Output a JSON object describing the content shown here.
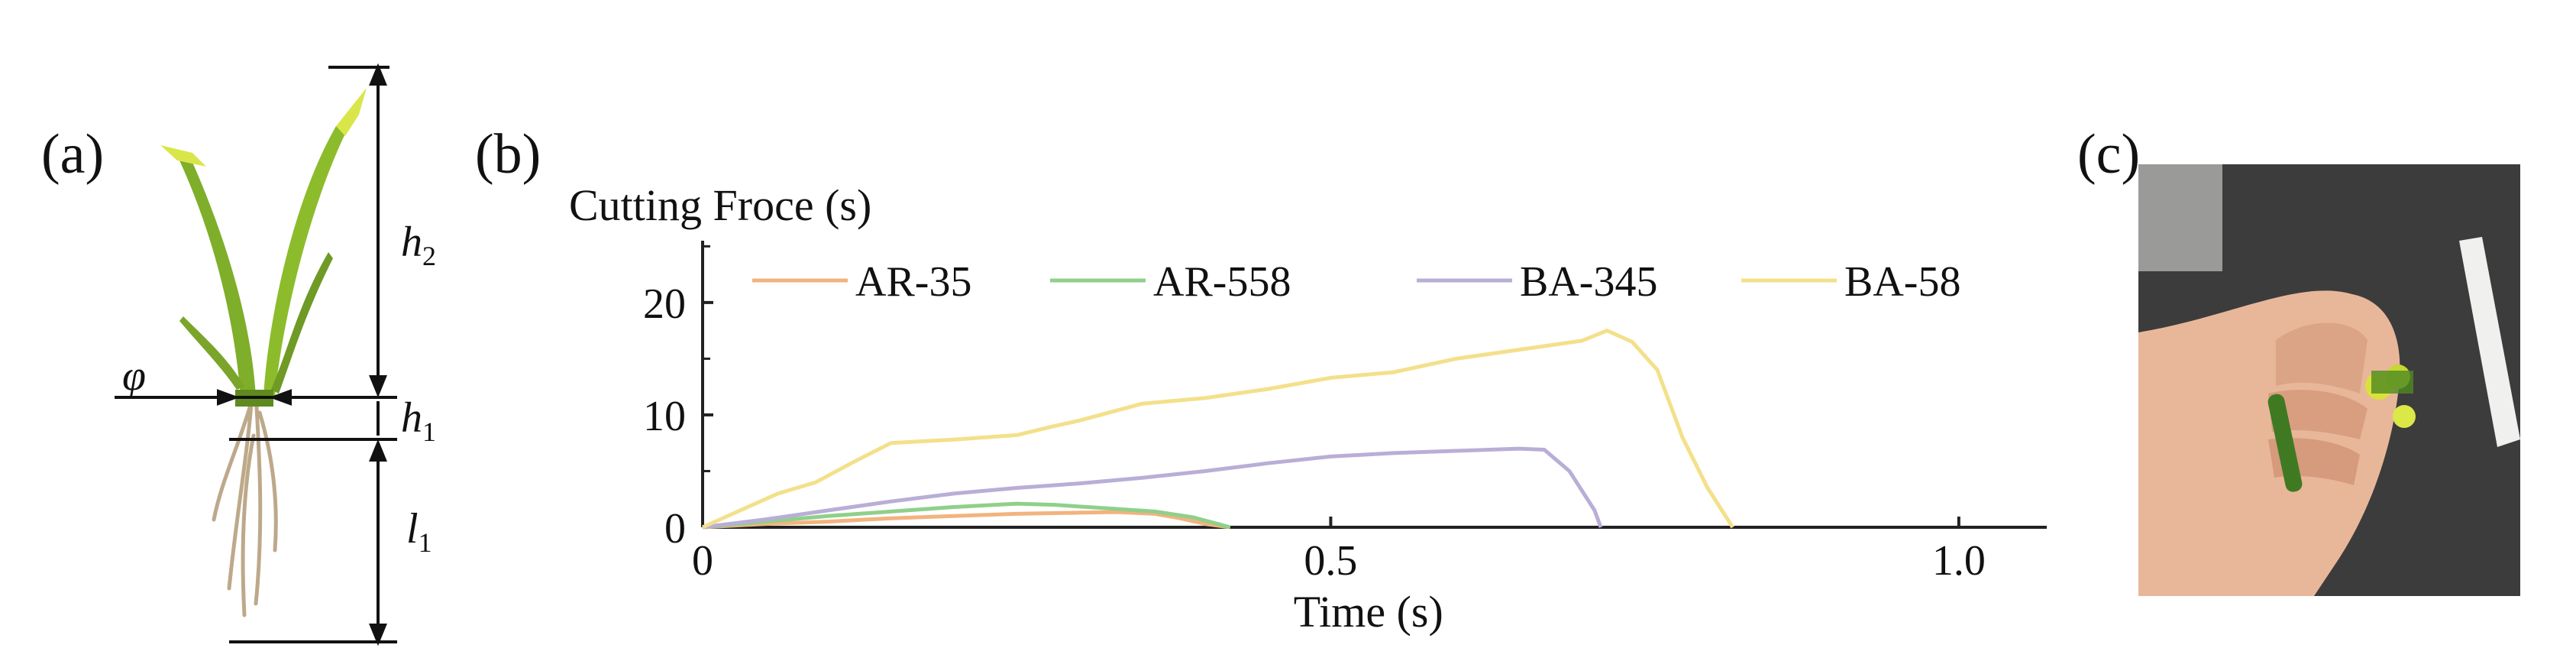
{
  "panels": {
    "a": {
      "label": "(a)",
      "dimension_labels": {
        "phi": "φ",
        "h1": "h",
        "h1_sub": "1",
        "h2": "h",
        "h2_sub": "2",
        "l1": "l",
        "l1_sub": "1"
      }
    },
    "b": {
      "label": "(b)"
    },
    "c": {
      "label": "(c)"
    }
  },
  "colors": {
    "AR-35": "#f2b37e",
    "AR-558": "#8fd08a",
    "BA-345": "#b9aed6",
    "BA-58": "#f3e08a",
    "axis": "#222222",
    "leaf_green": "#7fae2a",
    "leaf_yellow": "#d9e64a",
    "root": "#bda98a",
    "photo_bg": "#3c3c3c",
    "skin": "#e8b79a"
  },
  "chart_data": {
    "type": "line",
    "title": "",
    "ylabel": "Cutting Froce (s)",
    "xlabel": "Time (s)",
    "xlim": [
      0,
      1.07
    ],
    "ylim": [
      0,
      25.5
    ],
    "xticks": [
      {
        "v": 0,
        "label": "0"
      },
      {
        "v": 0.5,
        "label": "0.5"
      },
      {
        "v": 1.0,
        "label": "1.0"
      }
    ],
    "yticks": [
      {
        "v": 0,
        "label": "0"
      },
      {
        "v": 10,
        "label": "10"
      },
      {
        "v": 20,
        "label": "20"
      }
    ],
    "yminor": [
      5,
      15,
      25
    ],
    "legend_position": "top",
    "series": [
      {
        "name": "AR-35",
        "x": [
          0,
          0.05,
          0.1,
          0.15,
          0.2,
          0.25,
          0.3,
          0.33,
          0.36,
          0.38,
          0.4,
          0.42
        ],
        "y": [
          0,
          0.3,
          0.5,
          0.8,
          1.0,
          1.2,
          1.3,
          1.35,
          1.2,
          0.8,
          0.3,
          0
        ]
      },
      {
        "name": "AR-558",
        "x": [
          0,
          0.05,
          0.1,
          0.15,
          0.2,
          0.25,
          0.28,
          0.32,
          0.36,
          0.39,
          0.41,
          0.42
        ],
        "y": [
          0,
          0.5,
          1.0,
          1.4,
          1.8,
          2.1,
          2.0,
          1.7,
          1.4,
          0.9,
          0.3,
          0
        ]
      },
      {
        "name": "BA-345",
        "x": [
          0,
          0.05,
          0.1,
          0.15,
          0.2,
          0.25,
          0.3,
          0.35,
          0.4,
          0.45,
          0.5,
          0.55,
          0.6,
          0.65,
          0.67,
          0.69,
          0.71,
          0.715
        ],
        "y": [
          0,
          0.7,
          1.5,
          2.3,
          3.0,
          3.5,
          3.9,
          4.4,
          5.0,
          5.7,
          6.3,
          6.6,
          6.8,
          7.0,
          6.9,
          5.0,
          1.5,
          0
        ]
      },
      {
        "name": "BA-58",
        "x": [
          0,
          0.03,
          0.06,
          0.09,
          0.12,
          0.15,
          0.2,
          0.25,
          0.28,
          0.3,
          0.35,
          0.4,
          0.45,
          0.5,
          0.55,
          0.6,
          0.65,
          0.7,
          0.72,
          0.74,
          0.76,
          0.78,
          0.8,
          0.82
        ],
        "y": [
          0,
          1.5,
          3.0,
          4.0,
          5.8,
          7.5,
          7.8,
          8.2,
          9.0,
          9.5,
          11.0,
          11.5,
          12.3,
          13.3,
          13.8,
          15.0,
          15.8,
          16.6,
          17.5,
          16.5,
          14.0,
          8.0,
          3.5,
          0
        ]
      }
    ]
  },
  "photo": {
    "caption": ""
  }
}
